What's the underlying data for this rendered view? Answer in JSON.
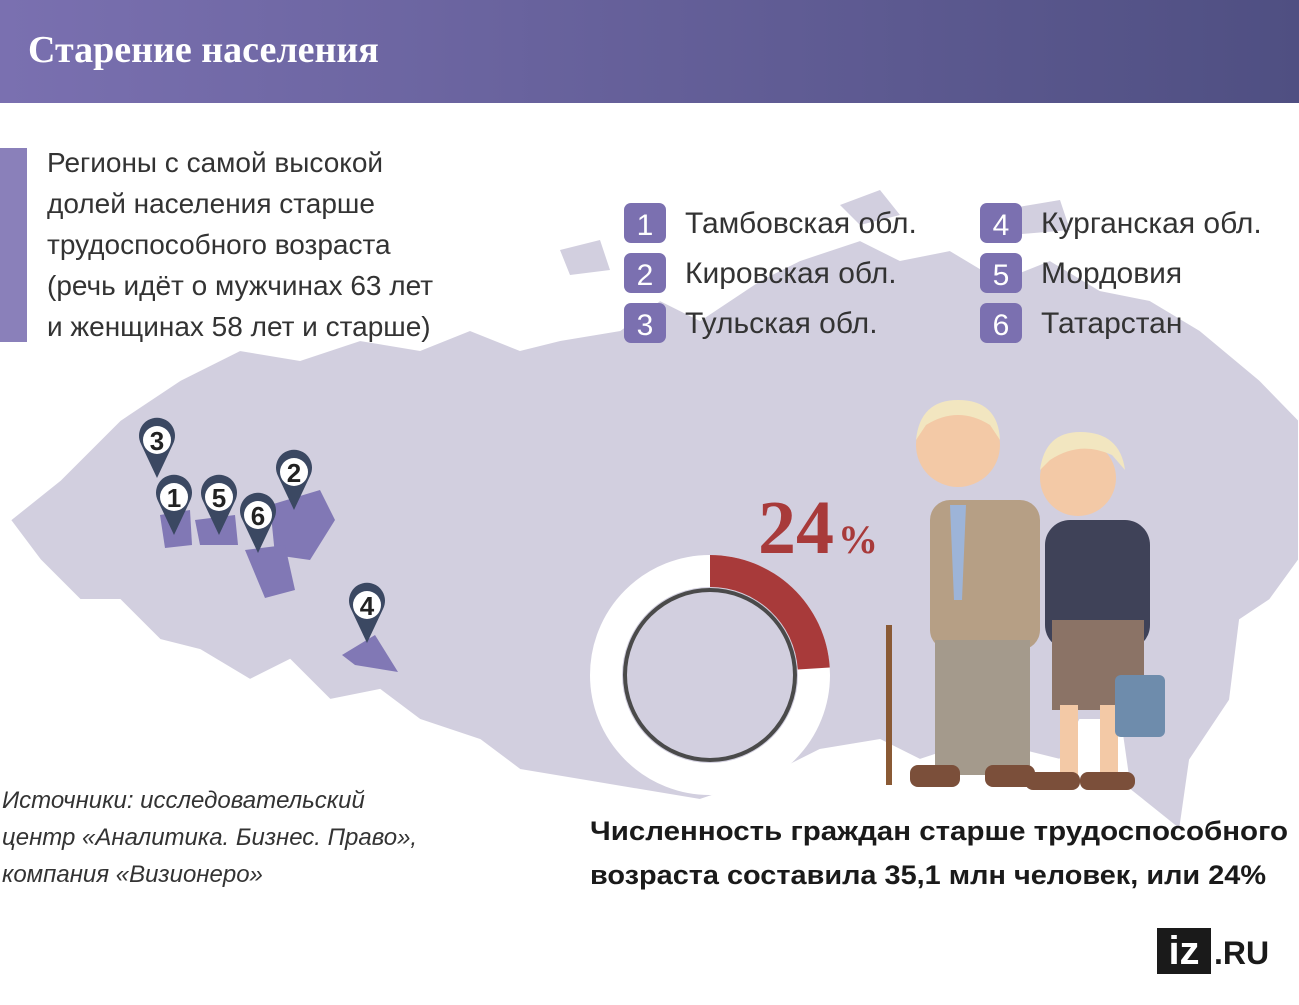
{
  "header": {
    "title": "Старение населения"
  },
  "intro": {
    "lines": [
      "Регионы с самой высокой",
      "долей населения старше",
      "трудоспособного возраста",
      "(речь идёт о мужчинах 63 лет",
      "и женщинах 58 лет и старше)"
    ]
  },
  "regions": [
    {
      "rank": 1,
      "name": "Тамбовская обл."
    },
    {
      "rank": 2,
      "name": "Кировская обл."
    },
    {
      "rank": 3,
      "name": "Тульская обл."
    },
    {
      "rank": 4,
      "name": "Курганская обл."
    },
    {
      "rank": 5,
      "name": "Мордовия"
    },
    {
      "rank": 6,
      "name": "Татарстан"
    }
  ],
  "map_pins": [
    3,
    1,
    5,
    6,
    2,
    4
  ],
  "donut": {
    "value": 24,
    "value_label": "24",
    "unit": "%"
  },
  "caption": {
    "lines": [
      "Численность граждан старше трудоспособного",
      "возраста составила 35,1 млн человек, или 24%"
    ]
  },
  "sources": {
    "lines": [
      "Источники: исследовательский",
      "центр «Аналитика. Бизнес. Право»,",
      "компания «Визионеро»"
    ]
  },
  "logo": {
    "brand": "iz",
    "domain": ".RU"
  }
}
